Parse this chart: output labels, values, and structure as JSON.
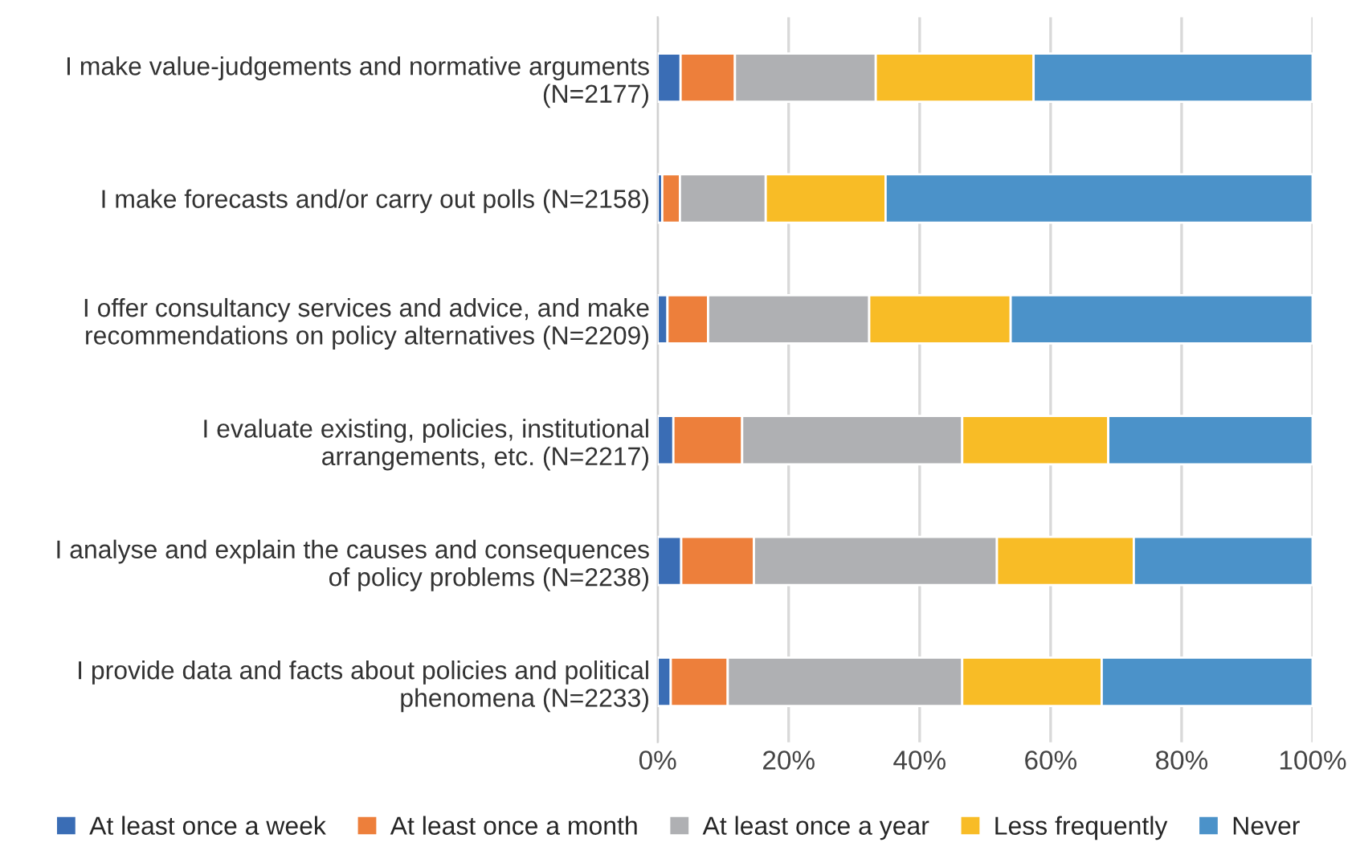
{
  "chart_data": {
    "type": "bar",
    "orientation": "horizontal",
    "stacked": true,
    "categories": [
      "I make value-judgements and normative arguments\n(N=2177)",
      "I make forecasts and/or carry out polls (N=2158)",
      "I offer consultancy services and advice, and make\nrecommendations on policy alternatives (N=2209)",
      "I evaluate existing, policies, institutional\narrangements, etc. (N=2217)",
      "I analyse and explain the causes and consequences\nof policy problems (N=2238)",
      "I provide data and facts about policies and political\nphenomena (N=2233)"
    ],
    "series": [
      {
        "name": "At least once a week",
        "color": "#3a6db5",
        "values": [
          3.5,
          0.7,
          1.5,
          2.4,
          3.6,
          2.0
        ]
      },
      {
        "name": "At least once a month",
        "color": "#ed7f3b",
        "values": [
          8.3,
          2.7,
          6.2,
          10.5,
          11.1,
          8.7
        ]
      },
      {
        "name": "At least once a year",
        "color": "#afb0b3",
        "values": [
          21.5,
          13.1,
          24.6,
          33.6,
          37.1,
          35.8
        ]
      },
      {
        "name": "Less frequently",
        "color": "#f8bc26",
        "values": [
          24.1,
          18.3,
          21.6,
          22.3,
          20.9,
          21.3
        ]
      },
      {
        "name": "Never",
        "color": "#4b92c9",
        "values": [
          42.6,
          65.2,
          46.1,
          31.2,
          27.3,
          32.2
        ]
      }
    ],
    "xlim": [
      0,
      100
    ],
    "xticks": [
      {
        "value": 0,
        "label": "0%"
      },
      {
        "value": 20,
        "label": "20%"
      },
      {
        "value": 40,
        "label": "40%"
      },
      {
        "value": 60,
        "label": "60%"
      },
      {
        "value": 80,
        "label": "80%"
      },
      {
        "value": 100,
        "label": "100%"
      }
    ],
    "grid": "x",
    "legend": "bottom"
  }
}
